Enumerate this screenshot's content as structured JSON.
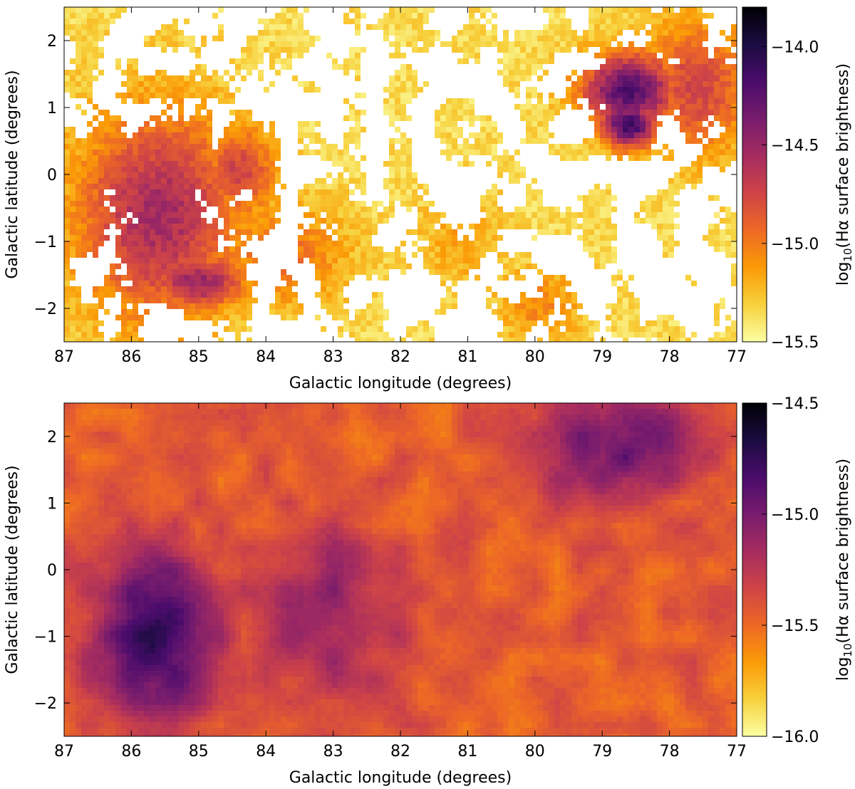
{
  "figure": {
    "colormap": "inferno_r",
    "colors": {
      "cmap_stops": [
        "#000004",
        "#1b0c41",
        "#4a0c6b",
        "#781c6d",
        "#a52c60",
        "#cf4446",
        "#ed6925",
        "#fb9b06",
        "#f7d13d",
        "#fcffa4"
      ],
      "background": "#ffffff"
    }
  },
  "chart_data": [
    {
      "type": "heatmap",
      "panel": "top",
      "title": "",
      "xlabel": "Galactic longitude (degrees)",
      "ylabel": "Galactic latitude (degrees)",
      "xlim": [
        87,
        77
      ],
      "ylim": [
        -2.5,
        2.5
      ],
      "x_ticks": [
        87,
        86,
        85,
        84,
        83,
        82,
        81,
        80,
        79,
        78,
        77
      ],
      "y_ticks": [
        -2,
        -1,
        0,
        1,
        2
      ],
      "x_tick_labels": [
        "87",
        "86",
        "85",
        "84",
        "83",
        "82",
        "81",
        "80",
        "79",
        "78",
        "77"
      ],
      "y_tick_labels": [
        "−2",
        "−1",
        "0",
        "1",
        "2"
      ],
      "grid": false,
      "colorbar": {
        "label_prefix": "log",
        "label_sub": "10",
        "label_suffix": "(Hα surface brightness)",
        "range": [
          -15.5,
          -13.8
        ],
        "ticks": [
          -14.0,
          -14.5,
          -15.0,
          -15.5
        ],
        "tick_labels": [
          "−14.0",
          "−14.5",
          "−15.0",
          "−15.5"
        ]
      },
      "blank_value": "no data (white)",
      "features": [
        {
          "l": 85.6,
          "b": -0.6,
          "sigma_l": 0.85,
          "sigma_b": 1.1,
          "level": -14.55
        },
        {
          "l": 84.4,
          "b": 0.05,
          "sigma_l": 0.4,
          "sigma_b": 0.5,
          "level": -14.75
        },
        {
          "l": 85.0,
          "b": -1.6,
          "sigma_l": 0.5,
          "sigma_b": 0.3,
          "level": -14.5
        },
        {
          "l": 83.8,
          "b": -1.2,
          "sigma_l": 0.7,
          "sigma_b": 0.55,
          "level": -14.95
        },
        {
          "l": 78.6,
          "b": 1.25,
          "sigma_l": 0.5,
          "sigma_b": 0.4,
          "level": -14.2
        },
        {
          "l": 78.6,
          "b": 0.75,
          "sigma_l": 0.3,
          "sigma_b": 0.25,
          "level": -14.1
        },
        {
          "l": 77.6,
          "b": 1.3,
          "sigma_l": 0.6,
          "sigma_b": 0.7,
          "level": -14.75
        },
        {
          "l": 79.9,
          "b": -1.95,
          "sigma_l": 0.45,
          "sigma_b": 0.4,
          "level": -15.05
        },
        {
          "l": 81.1,
          "b": -1.0,
          "sigma_l": 0.45,
          "sigma_b": 0.5,
          "level": -15.15
        }
      ]
    },
    {
      "type": "heatmap",
      "panel": "bottom",
      "title": "",
      "xlabel": "Galactic longitude (degrees)",
      "ylabel": "Galactic latitude (degrees)",
      "xlim": [
        87,
        77
      ],
      "ylim": [
        -2.5,
        2.5
      ],
      "x_ticks": [
        87,
        86,
        85,
        84,
        83,
        82,
        81,
        80,
        79,
        78,
        77
      ],
      "y_ticks": [
        -2,
        -1,
        0,
        1,
        2
      ],
      "x_tick_labels": [
        "87",
        "86",
        "85",
        "84",
        "83",
        "82",
        "81",
        "80",
        "79",
        "78",
        "77"
      ],
      "y_tick_labels": [
        "−2",
        "−1",
        "0",
        "1",
        "2"
      ],
      "grid": false,
      "colorbar": {
        "label_prefix": "log",
        "label_sub": "10",
        "label_suffix": "(Hα surface brightness)",
        "range": [
          -16.0,
          -14.5
        ],
        "ticks": [
          -14.5,
          -15.0,
          -15.5,
          -16.0
        ],
        "tick_labels": [
          "−14.5",
          "−15.0",
          "−15.5",
          "−16.0"
        ]
      },
      "features": [
        {
          "l": 85.6,
          "b": -1.0,
          "sigma_l": 0.7,
          "sigma_b": 0.9,
          "level": -14.75
        },
        {
          "l": 83.1,
          "b": -0.6,
          "sigma_l": 0.9,
          "sigma_b": 0.9,
          "level": -15.1
        },
        {
          "l": 79.3,
          "b": -0.35,
          "sigma_l": 0.45,
          "sigma_b": 0.3,
          "level": -15.95
        },
        {
          "l": 78.5,
          "b": -1.4,
          "sigma_l": 0.35,
          "sigma_b": 0.45,
          "level": -15.85
        },
        {
          "l": 80.7,
          "b": -0.85,
          "sigma_l": 0.5,
          "sigma_b": 0.4,
          "level": -15.8
        },
        {
          "l": 78.8,
          "b": 1.9,
          "sigma_l": 0.9,
          "sigma_b": 0.6,
          "level": -14.95
        },
        {
          "l": 81.3,
          "b": 1.6,
          "sigma_l": 0.9,
          "sigma_b": 0.7,
          "level": -15.7
        }
      ]
    }
  ]
}
